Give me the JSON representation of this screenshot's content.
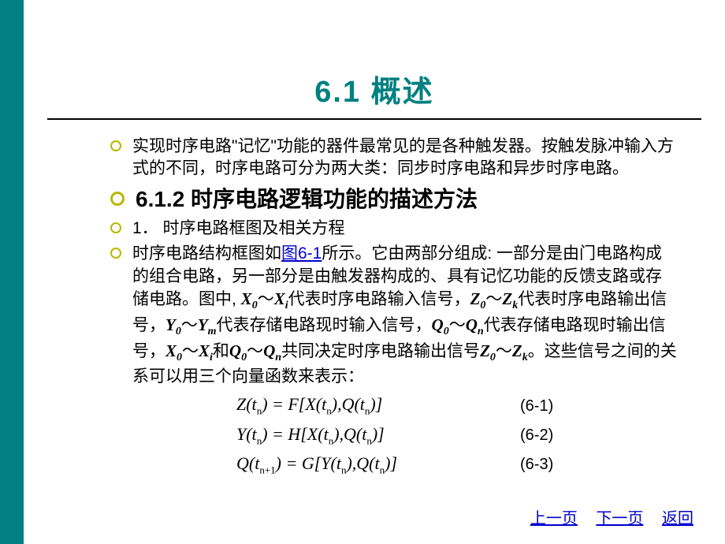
{
  "title": "6.1  概述",
  "paragraphs": {
    "p1": "实现时序电路\"记忆\"功能的器件最常见的是各种触发器。按触发脉冲输入方式的不同，时序电路可分为两大类：同步时序电路和异步时序电路。",
    "subheading": "6.1.2 时序电路逻辑功能的描述方法",
    "p2": "1．  时序电路框图及相关方程",
    "p3_before_link": "时序电路结构框图如",
    "p3_link": "图6-1",
    "p3_after_link_1": "所示。它由两部分组成: 一部分是由门电路构成的组合电路，另一部分是由触发器构成的、具有记忆功能的反馈支路或存储电路。图中, ",
    "p3_tail": "代表时序电路输入信号，",
    "p3_tail2": "代表时序电路输出信号，",
    "p3_tail3": "代表存储电路现时输入信号，",
    "p3_tail4": "代表存储电路现时输出信号，",
    "p3_tail5": "共同决定时序电路输出信号",
    "p3_tail6": "。这些信号之间的关系可以用三个向量函数来表示：",
    "and": "和"
  },
  "vars": {
    "X": "X",
    "Z": "Z",
    "Y": "Y",
    "Q": "Q",
    "sub0": "0",
    "subi": "i",
    "subk": "k",
    "subm": "m",
    "subn": "n",
    "tilde": "～"
  },
  "equations": [
    {
      "lhs": "Z(t",
      "sub": "n",
      "mid": ") = F[X(t",
      "sub2": "n",
      "mid2": "),Q(t",
      "sub3": "n",
      "end": ")]",
      "label": "(6-1)"
    },
    {
      "lhs": "Y(t",
      "sub": "n",
      "mid": ") = H[X(t",
      "sub2": "n",
      "mid2": "),Q(t",
      "sub3": "n",
      "end": ")]",
      "label": "(6-2)"
    },
    {
      "lhs": "Q(t",
      "sub": "n+1",
      "mid": ") = G[Y(t",
      "sub2": "n",
      "mid2": "),Q(t",
      "sub3": "n",
      "end": ")]",
      "label": "(6-3)"
    }
  ],
  "nav": {
    "prev": "上一页",
    "next": "下一页",
    "back": "返回"
  },
  "colors": {
    "sidebar": "#008080",
    "title": "#008080",
    "bullet": "#b8b800",
    "link": "#0000cc",
    "text": "#000000",
    "background": "#ffffff"
  }
}
